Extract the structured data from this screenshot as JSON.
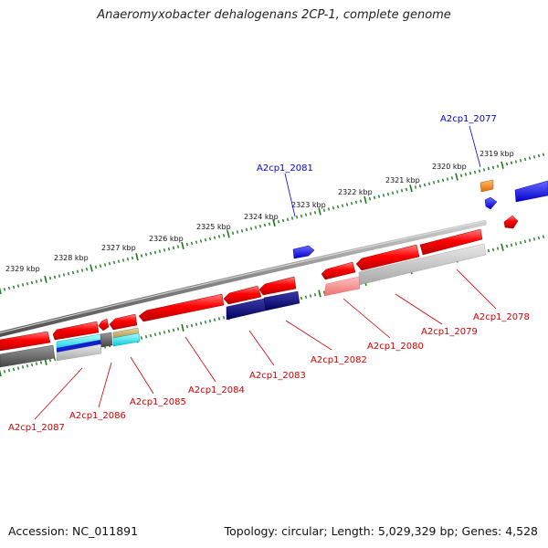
{
  "title": "Anaeromyxobacter dehalogenans 2CP-1, complete genome",
  "accession": "Accession: NC_011891",
  "genome_info": "Topology: circular; Length: 5,029,329 bp; Genes: 4,528",
  "kbp_labels": [
    "2319 kbp",
    "2320 kbp",
    "2321 kbp",
    "2322 kbp",
    "2323 kbp",
    "2324 kbp",
    "2325 kbp",
    "2326 kbp",
    "2327 kbp",
    "2328 kbp",
    "2329 kbp"
  ],
  "gene_labels": {
    "forward": [
      "A2cp1_2077",
      "A2cp1_2081"
    ],
    "reverse": [
      "A2cp1_2078",
      "A2cp1_2079",
      "A2cp1_2080",
      "A2cp1_2082",
      "A2cp1_2083",
      "A2cp1_2084",
      "A2cp1_2085",
      "A2cp1_2086",
      "A2cp1_2087"
    ]
  },
  "colors": {
    "forward_label": "#0000cc",
    "reverse_label": "#cc0000",
    "tick": "#1a7a1a",
    "backbone": "#888888",
    "cds": "#ff0000",
    "dark_feature": "#000080",
    "blue_feature": "#0000ee",
    "orange_feature": "#ff8800"
  }
}
